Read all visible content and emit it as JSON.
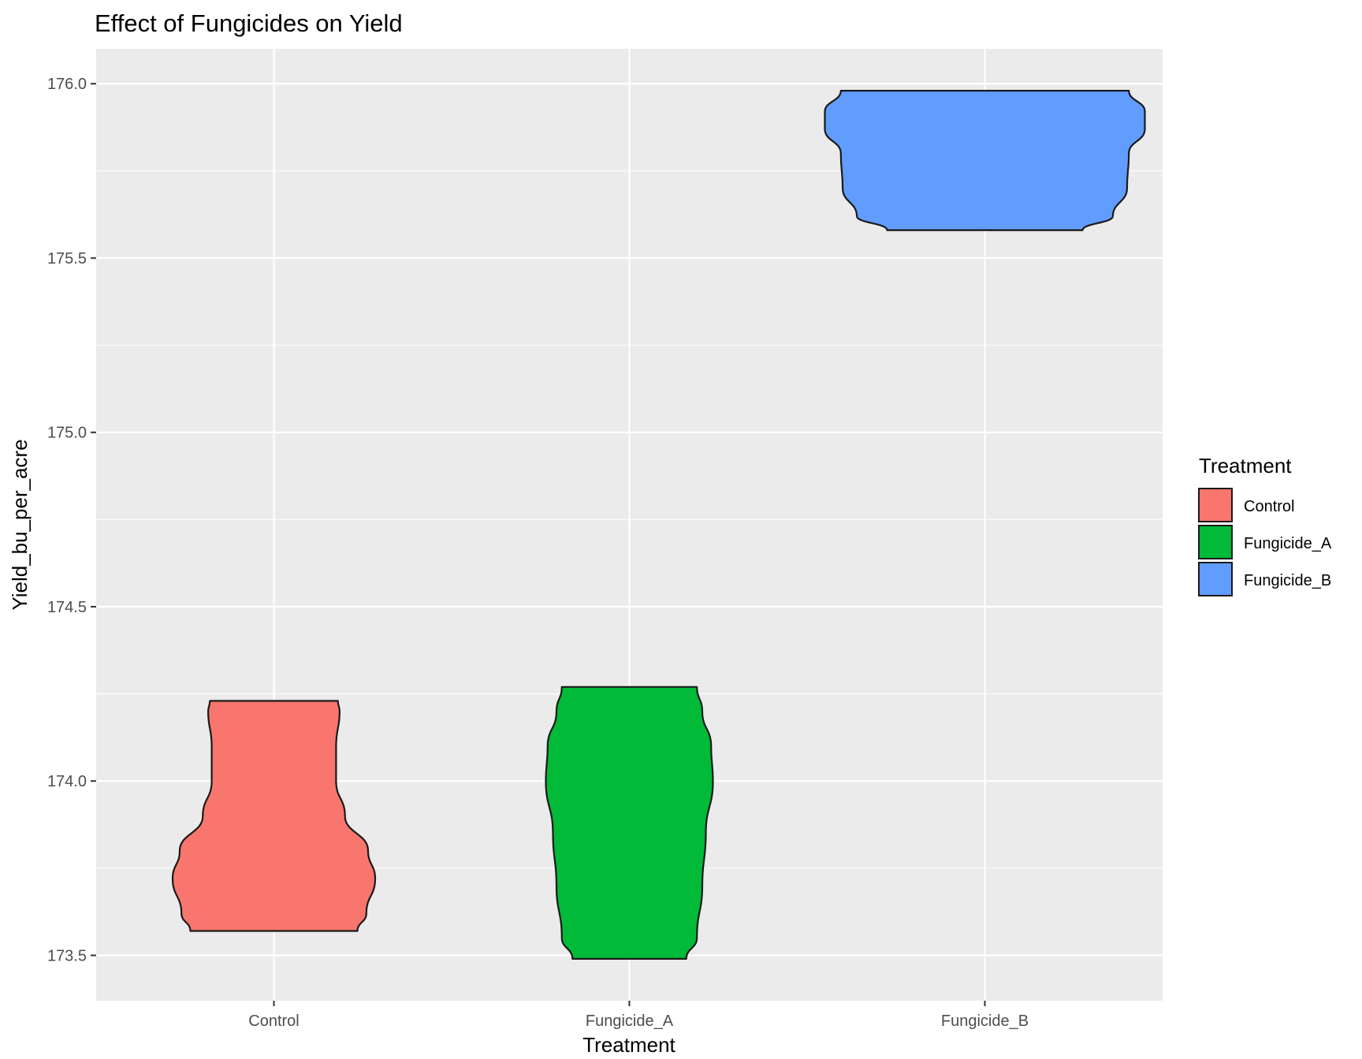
{
  "chart_data": {
    "type": "violin",
    "title": "Effect of Fungicides on Yield",
    "xlabel": "Treatment",
    "ylabel": "Yield_bu_per_acre",
    "categories": [
      "Control",
      "Fungicide_A",
      "Fungicide_B"
    ],
    "ylim": [
      173.37,
      176.1
    ],
    "yticks": [
      173.5,
      174.0,
      174.5,
      175.0,
      175.5,
      176.0
    ],
    "ytick_labels": [
      "173.5",
      "174.0",
      "174.5",
      "175.0",
      "175.5",
      "176.0"
    ],
    "grid": true,
    "legend": {
      "title": "Treatment",
      "position": "right",
      "entries": [
        "Control",
        "Fungicide_A",
        "Fungicide_B"
      ]
    },
    "colors": {
      "Control": "#F8766D",
      "Fungicide_A": "#00BA38",
      "Fungicide_B": "#619CFF",
      "panel_background": "#EBEBEB",
      "grid_line": "#FFFFFF",
      "outline": "#1a1a1a"
    },
    "series": [
      {
        "name": "Control",
        "min": 173.57,
        "max": 174.23,
        "density_profile": [
          [
            173.57,
            0.47
          ],
          [
            173.62,
            0.52
          ],
          [
            173.72,
            0.57
          ],
          [
            173.8,
            0.53
          ],
          [
            173.9,
            0.4
          ],
          [
            174.0,
            0.35
          ],
          [
            174.1,
            0.35
          ],
          [
            174.2,
            0.37
          ],
          [
            174.23,
            0.36
          ]
        ]
      },
      {
        "name": "Fungicide_A",
        "min": 173.49,
        "max": 174.27,
        "density_profile": [
          [
            173.49,
            0.32
          ],
          [
            173.55,
            0.38
          ],
          [
            173.7,
            0.41
          ],
          [
            173.85,
            0.43
          ],
          [
            174.0,
            0.47
          ],
          [
            174.1,
            0.46
          ],
          [
            174.2,
            0.41
          ],
          [
            174.27,
            0.38
          ]
        ]
      },
      {
        "name": "Fungicide_B",
        "min": 175.58,
        "max": 175.98,
        "density_profile": [
          [
            175.58,
            0.55
          ],
          [
            175.62,
            0.72
          ],
          [
            175.7,
            0.8
          ],
          [
            175.8,
            0.81
          ],
          [
            175.87,
            0.9
          ],
          [
            175.92,
            0.9
          ],
          [
            175.98,
            0.81
          ]
        ]
      }
    ]
  }
}
